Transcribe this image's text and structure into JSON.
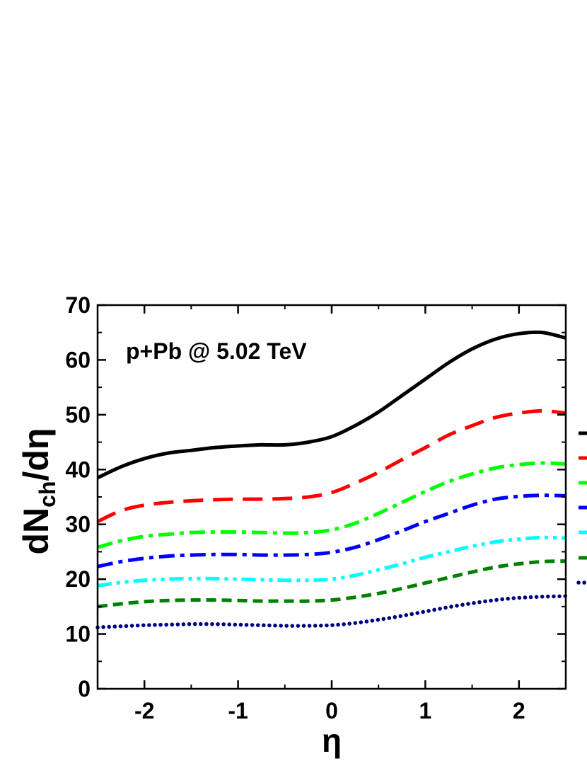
{
  "chart_data": {
    "type": "line",
    "title": "",
    "annotation": "p+Pb @ 5.02 TeV",
    "xlabel": "η",
    "ylabel_main": "dN",
    "ylabel_sub": "ch",
    "ylabel_tail": "/dη",
    "xlim": [
      -2.5,
      2.5
    ],
    "ylim": [
      0,
      70
    ],
    "x_ticks": [
      -2,
      -1,
      0,
      1,
      2
    ],
    "y_ticks": [
      0,
      10,
      20,
      30,
      40,
      50,
      60,
      70
    ],
    "x_tick_labels": [
      "-2",
      "-1",
      "0",
      "1",
      "2"
    ],
    "y_tick_labels": [
      "0",
      "10",
      "20",
      "30",
      "40",
      "50",
      "60",
      "70"
    ],
    "grid": false,
    "legend": "right, partially cropped (line samples only)",
    "x": [
      -2.5,
      -2.25,
      -2.0,
      -1.75,
      -1.5,
      -1.25,
      -1.0,
      -0.75,
      -0.5,
      -0.25,
      0.0,
      0.25,
      0.5,
      0.75,
      1.0,
      1.25,
      1.5,
      1.75,
      2.0,
      2.25,
      2.5
    ],
    "series": [
      {
        "color": "#000000",
        "dash": "solid",
        "values": [
          38.5,
          40.5,
          42.0,
          43.0,
          43.5,
          44.0,
          44.3,
          44.5,
          44.5,
          45.0,
          46.0,
          48.0,
          50.5,
          53.5,
          56.5,
          59.5,
          62.0,
          63.8,
          64.8,
          65.0,
          64.0
        ]
      },
      {
        "color": "#ff0000",
        "dash": "long-dash",
        "values": [
          30.5,
          32.5,
          33.5,
          34.0,
          34.3,
          34.5,
          34.6,
          34.6,
          34.7,
          35.0,
          35.8,
          37.5,
          39.5,
          41.8,
          44.0,
          46.3,
          48.0,
          49.5,
          50.3,
          50.7,
          50.3
        ]
      },
      {
        "color": "#00ff00",
        "dash": "dash-dot",
        "values": [
          25.8,
          27.0,
          27.8,
          28.2,
          28.5,
          28.6,
          28.6,
          28.5,
          28.4,
          28.5,
          29.0,
          30.2,
          32.0,
          34.0,
          36.0,
          37.8,
          39.2,
          40.3,
          40.9,
          41.2,
          41.0
        ]
      },
      {
        "color": "#0000ff",
        "dash": "dash-dot",
        "values": [
          22.3,
          23.2,
          23.8,
          24.2,
          24.4,
          24.5,
          24.5,
          24.4,
          24.4,
          24.5,
          24.9,
          25.8,
          27.2,
          28.8,
          30.5,
          32.0,
          33.5,
          34.6,
          35.1,
          35.3,
          35.2
        ]
      },
      {
        "color": "#00ffff",
        "dash": "dash-dot-dot",
        "values": [
          18.8,
          19.4,
          19.8,
          20.0,
          20.1,
          20.1,
          20.0,
          19.9,
          19.8,
          19.8,
          20.0,
          20.7,
          21.7,
          22.8,
          24.0,
          25.0,
          26.0,
          26.8,
          27.3,
          27.6,
          27.5
        ]
      },
      {
        "color": "#008000",
        "dash": "short-dash",
        "values": [
          15.0,
          15.5,
          15.9,
          16.1,
          16.2,
          16.2,
          16.1,
          16.0,
          16.0,
          16.0,
          16.2,
          16.7,
          17.4,
          18.3,
          19.3,
          20.3,
          21.3,
          22.2,
          22.8,
          23.2,
          23.3
        ]
      },
      {
        "color": "#000080",
        "dash": "dotted",
        "values": [
          11.2,
          11.4,
          11.6,
          11.7,
          11.8,
          11.8,
          11.7,
          11.6,
          11.5,
          11.5,
          11.6,
          12.0,
          12.6,
          13.3,
          14.1,
          14.9,
          15.6,
          16.2,
          16.6,
          16.8,
          16.9
        ]
      }
    ]
  }
}
